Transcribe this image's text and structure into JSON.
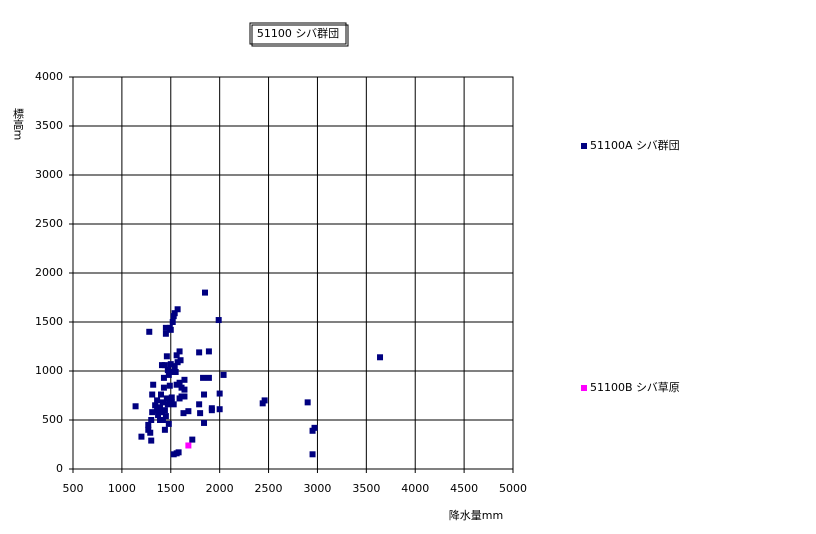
{
  "chart_data": {
    "type": "scatter",
    "title": "51100 シバ群団",
    "x_label": "降水量mm",
    "y_label": "標高m",
    "xlim": [
      500,
      5000
    ],
    "xticks": [
      500,
      1000,
      1500,
      2000,
      2500,
      3000,
      3500,
      4000,
      4500,
      5000
    ],
    "ylim": [
      0,
      4000
    ],
    "yticks": [
      0,
      500,
      1000,
      1500,
      2000,
      2500,
      3000,
      3500,
      4000
    ],
    "grid": true,
    "series": [
      {
        "name": "51100A シバ群団",
        "color": "#000080",
        "x": [
          1140,
          1200,
          1280,
          1270,
          1270,
          1290,
          1300,
          1300,
          1310,
          1320,
          1310,
          1340,
          1360,
          1360,
          1370,
          1390,
          1390,
          1400,
          1410,
          1410,
          1420,
          1420,
          1430,
          1430,
          1440,
          1440,
          1440,
          1450,
          1450,
          1450,
          1460,
          1460,
          1470,
          1470,
          1480,
          1480,
          1490,
          1490,
          1490,
          1500,
          1500,
          1510,
          1510,
          1520,
          1520,
          1530,
          1530,
          1530,
          1540,
          1540,
          1550,
          1560,
          1560,
          1560,
          1570,
          1570,
          1580,
          1590,
          1590,
          1590,
          1600,
          1610,
          1610,
          1630,
          1640,
          1640,
          1640,
          1680,
          1720,
          1790,
          1790,
          1800,
          1830,
          1840,
          1840,
          1850,
          1890,
          1890,
          1920,
          1920,
          1990,
          2000,
          2000,
          2040,
          2440,
          2460,
          2900,
          2950,
          2970,
          2950,
          3640
        ],
        "y": [
          640,
          330,
          1400,
          450,
          400,
          370,
          290,
          500,
          760,
          860,
          580,
          650,
          600,
          700,
          550,
          500,
          630,
          760,
          1060,
          580,
          680,
          500,
          930,
          830,
          1060,
          600,
          400,
          1380,
          1440,
          540,
          1150,
          720,
          1010,
          660,
          460,
          960,
          1440,
          850,
          700,
          1420,
          1070,
          680,
          730,
          1500,
          990,
          1560,
          660,
          150,
          1590,
          1050,
          990,
          1160,
          860,
          160,
          1630,
          1090,
          170,
          1200,
          880,
          720,
          1110,
          830,
          740,
          570,
          910,
          740,
          810,
          590,
          300,
          1190,
          660,
          570,
          930,
          760,
          470,
          1800,
          1200,
          930,
          600,
          620,
          1520,
          610,
          770,
          960,
          670,
          700,
          680,
          390,
          420,
          150,
          1140
        ]
      },
      {
        "name": "51100B シバ草原",
        "color": "#ff00ff",
        "x": [
          1680
        ],
        "y": [
          240
        ]
      }
    ]
  }
}
